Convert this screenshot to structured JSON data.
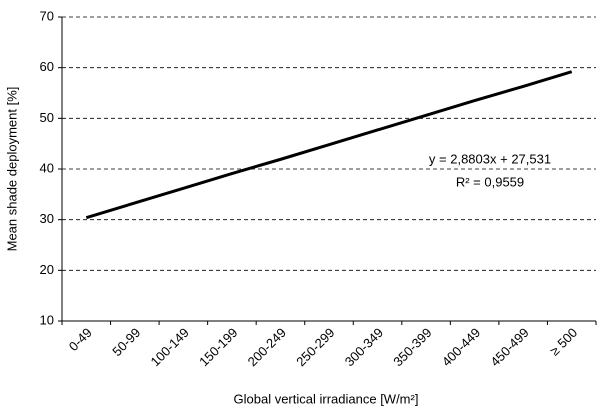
{
  "chart_data": {
    "type": "line",
    "x_label": "Global vertical irradiance [W/m²]",
    "y_label": "Mean shade deployment [%]",
    "categories": [
      "0-49",
      "50-99",
      "100-149",
      "150-199",
      "200-249",
      "250-299",
      "300-349",
      "350-399",
      "400-449",
      "450-499",
      "≥ 500"
    ],
    "series": [
      {
        "color": "#000000",
        "values": [
          30.4,
          33.3,
          36.2,
          39.1,
          41.9,
          44.8,
          47.7,
          50.6,
          53.5,
          56.3,
          59.2
        ]
      }
    ],
    "ylim": [
      10,
      70
    ],
    "yticks": [
      10,
      20,
      30,
      40,
      50,
      60,
      70
    ],
    "grid": true,
    "annotations": [
      "y = 2,8803x + 27,531",
      "R² = 0,9559"
    ]
  }
}
